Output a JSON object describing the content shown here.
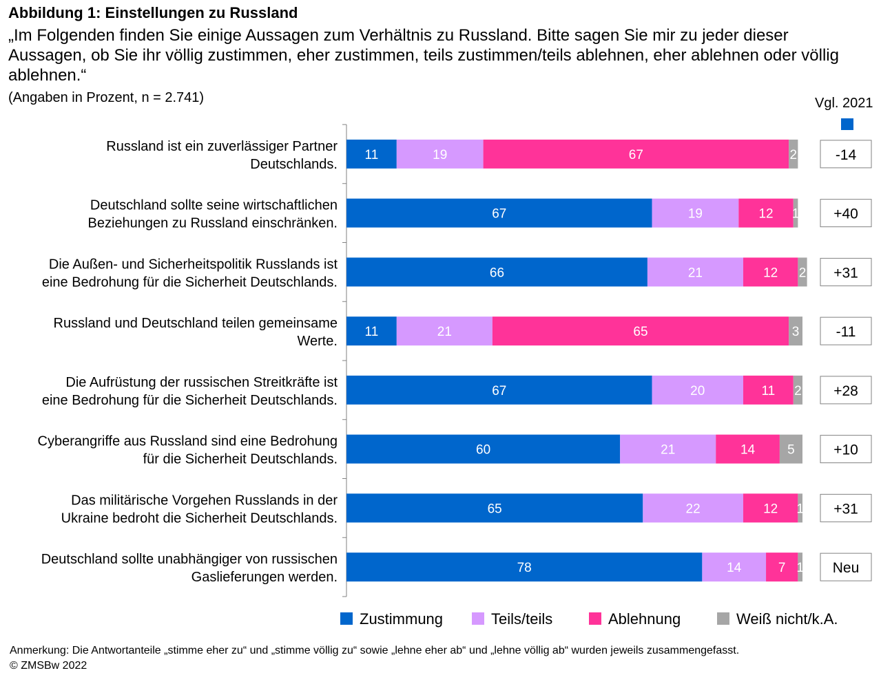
{
  "title": "Abbildung 1: Einstellungen zu Russland",
  "subtitle": "„Im Folgenden finden Sie einige Aussagen zum Verhältnis zu Russland. Bitte sagen Sie mir zu jeder dieser Aussagen, ob Sie ihr völlig zustimmen, eher zustimmen, teils zustimmen/teils ablehnen, eher ablehnen oder völlig ablehnen.“",
  "note": "(Angaben in Prozent, n = 2.741)",
  "comparison_header": "Vgl. 2021",
  "footnote": {
    "line1": "Anmerkung: Die Antwortanteile „stimme eher zu“ und „stimme völlig zu“ sowie „lehne eher ab“ und „lehne völlig ab“ wurden jeweils zusammengefasst.",
    "line2": "© ZMSBw 2022"
  },
  "colors": {
    "zustimmung": "#0066CC",
    "teils": "#D699FF",
    "ablehnung": "#FF3399",
    "weiss_nicht": "#A6A6A6"
  },
  "chart_data": {
    "type": "bar",
    "orientation": "horizontal",
    "stacked": true,
    "xlim": [
      0,
      100
    ],
    "categories": [
      [
        "Russland ist ein zuverlässiger Partner",
        "Deutschlands."
      ],
      [
        "Deutschland sollte seine wirtschaftlichen",
        "Beziehungen zu Russland einschränken."
      ],
      [
        "Die Außen- und Sicherheitspolitik Russlands ist",
        "eine Bedrohung für die Sicherheit Deutschlands."
      ],
      [
        "Russland und Deutschland teilen gemeinsame",
        "Werte."
      ],
      [
        "Die Aufrüstung der russischen Streitkräfte ist",
        "eine Bedrohung für die Sicherheit Deutschlands."
      ],
      [
        "Cyberangriffe aus Russland sind eine Bedrohung",
        "für die Sicherheit Deutschlands."
      ],
      [
        "Das militärische Vorgehen Russlands in der",
        "Ukraine bedroht die Sicherheit Deutschlands."
      ],
      [
        "Deutschland sollte unabhängiger von russischen",
        "Gaslieferungen werden."
      ]
    ],
    "series": [
      {
        "name": "Zustimmung",
        "color": "#0066CC",
        "values": [
          11,
          67,
          66,
          11,
          67,
          60,
          65,
          78
        ]
      },
      {
        "name": "Teils/teils",
        "color": "#D699FF",
        "values": [
          19,
          19,
          21,
          21,
          20,
          21,
          22,
          14
        ]
      },
      {
        "name": "Ablehnung",
        "color": "#FF3399",
        "values": [
          67,
          12,
          12,
          65,
          11,
          14,
          12,
          7
        ]
      },
      {
        "name": "Weiß nicht/k.A.",
        "color": "#A6A6A6",
        "values": [
          2,
          1,
          2,
          3,
          2,
          5,
          1,
          1
        ]
      }
    ],
    "comparison_2021": [
      "-14",
      "+40",
      "+31",
      "-11",
      "+28",
      "+10",
      "+31",
      "Neu"
    ],
    "legend_position": "bottom"
  }
}
